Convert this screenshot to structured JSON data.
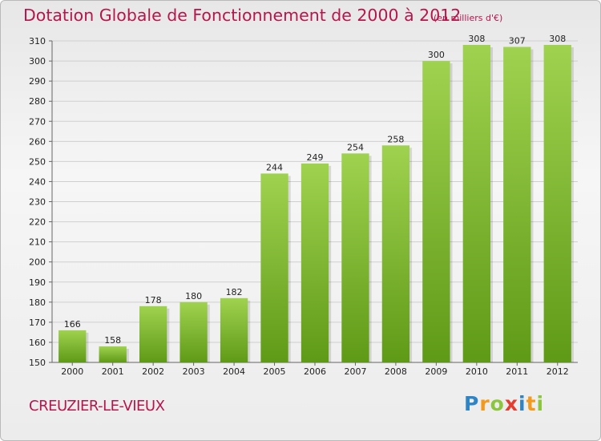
{
  "title": "Dotation Globale de Fonctionnement de 2000 à 2012",
  "subtitle": "(en milliers d'€)",
  "commune": "CREUZIER-LE-VIEUX",
  "logo": {
    "letters": [
      "P",
      "r",
      "o",
      "x",
      "i",
      "t",
      "i"
    ],
    "colors": [
      "#2f84c6",
      "#f39a1d",
      "#8cc63f",
      "#e43c2f",
      "#2f84c6",
      "#f39a1d",
      "#8cc63f"
    ]
  },
  "colors": {
    "title": "#b5164c",
    "bar_top": "#9fd24f",
    "bar_bottom": "#5f9a17"
  },
  "chart_data": {
    "type": "bar",
    "categories": [
      "2000",
      "2001",
      "2002",
      "2003",
      "2004",
      "2005",
      "2006",
      "2007",
      "2008",
      "2009",
      "2010",
      "2011",
      "2012"
    ],
    "values": [
      166,
      158,
      178,
      180,
      182,
      244,
      249,
      254,
      258,
      300,
      308,
      307,
      308
    ],
    "ylim": [
      150,
      310
    ],
    "yticks": [
      150,
      160,
      170,
      180,
      190,
      200,
      210,
      220,
      230,
      240,
      250,
      260,
      270,
      280,
      290,
      300,
      310
    ],
    "grid": true,
    "data_labels": true
  }
}
